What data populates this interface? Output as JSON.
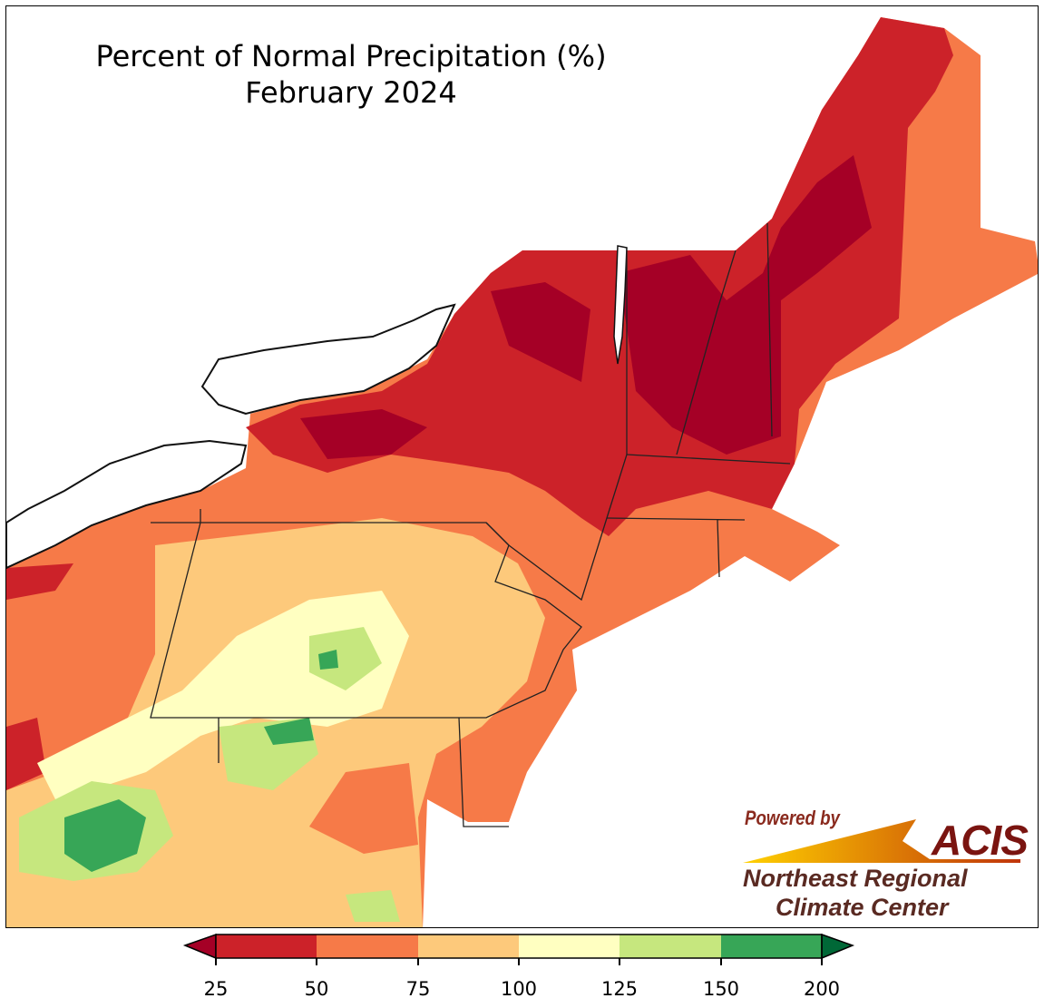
{
  "title": {
    "line1": "Percent of Normal Precipitation (%)",
    "line2": "February 2024"
  },
  "logo": {
    "powered_by": "Powered by",
    "acis": "ACIS",
    "org_line1": "Northeast Regional",
    "org_line2": "Climate Center"
  },
  "legend": {
    "ticks": [
      "25",
      "50",
      "75",
      "100",
      "125",
      "150",
      "200"
    ],
    "colors": {
      "under25": "#a50026",
      "c25_50": "#cc2229",
      "c50_75": "#f67a48",
      "c75_100": "#fdc97b",
      "c100_125": "#ffffc1",
      "c125_150": "#c6e77e",
      "c150_200": "#37a657",
      "over200": "#006837"
    }
  }
}
